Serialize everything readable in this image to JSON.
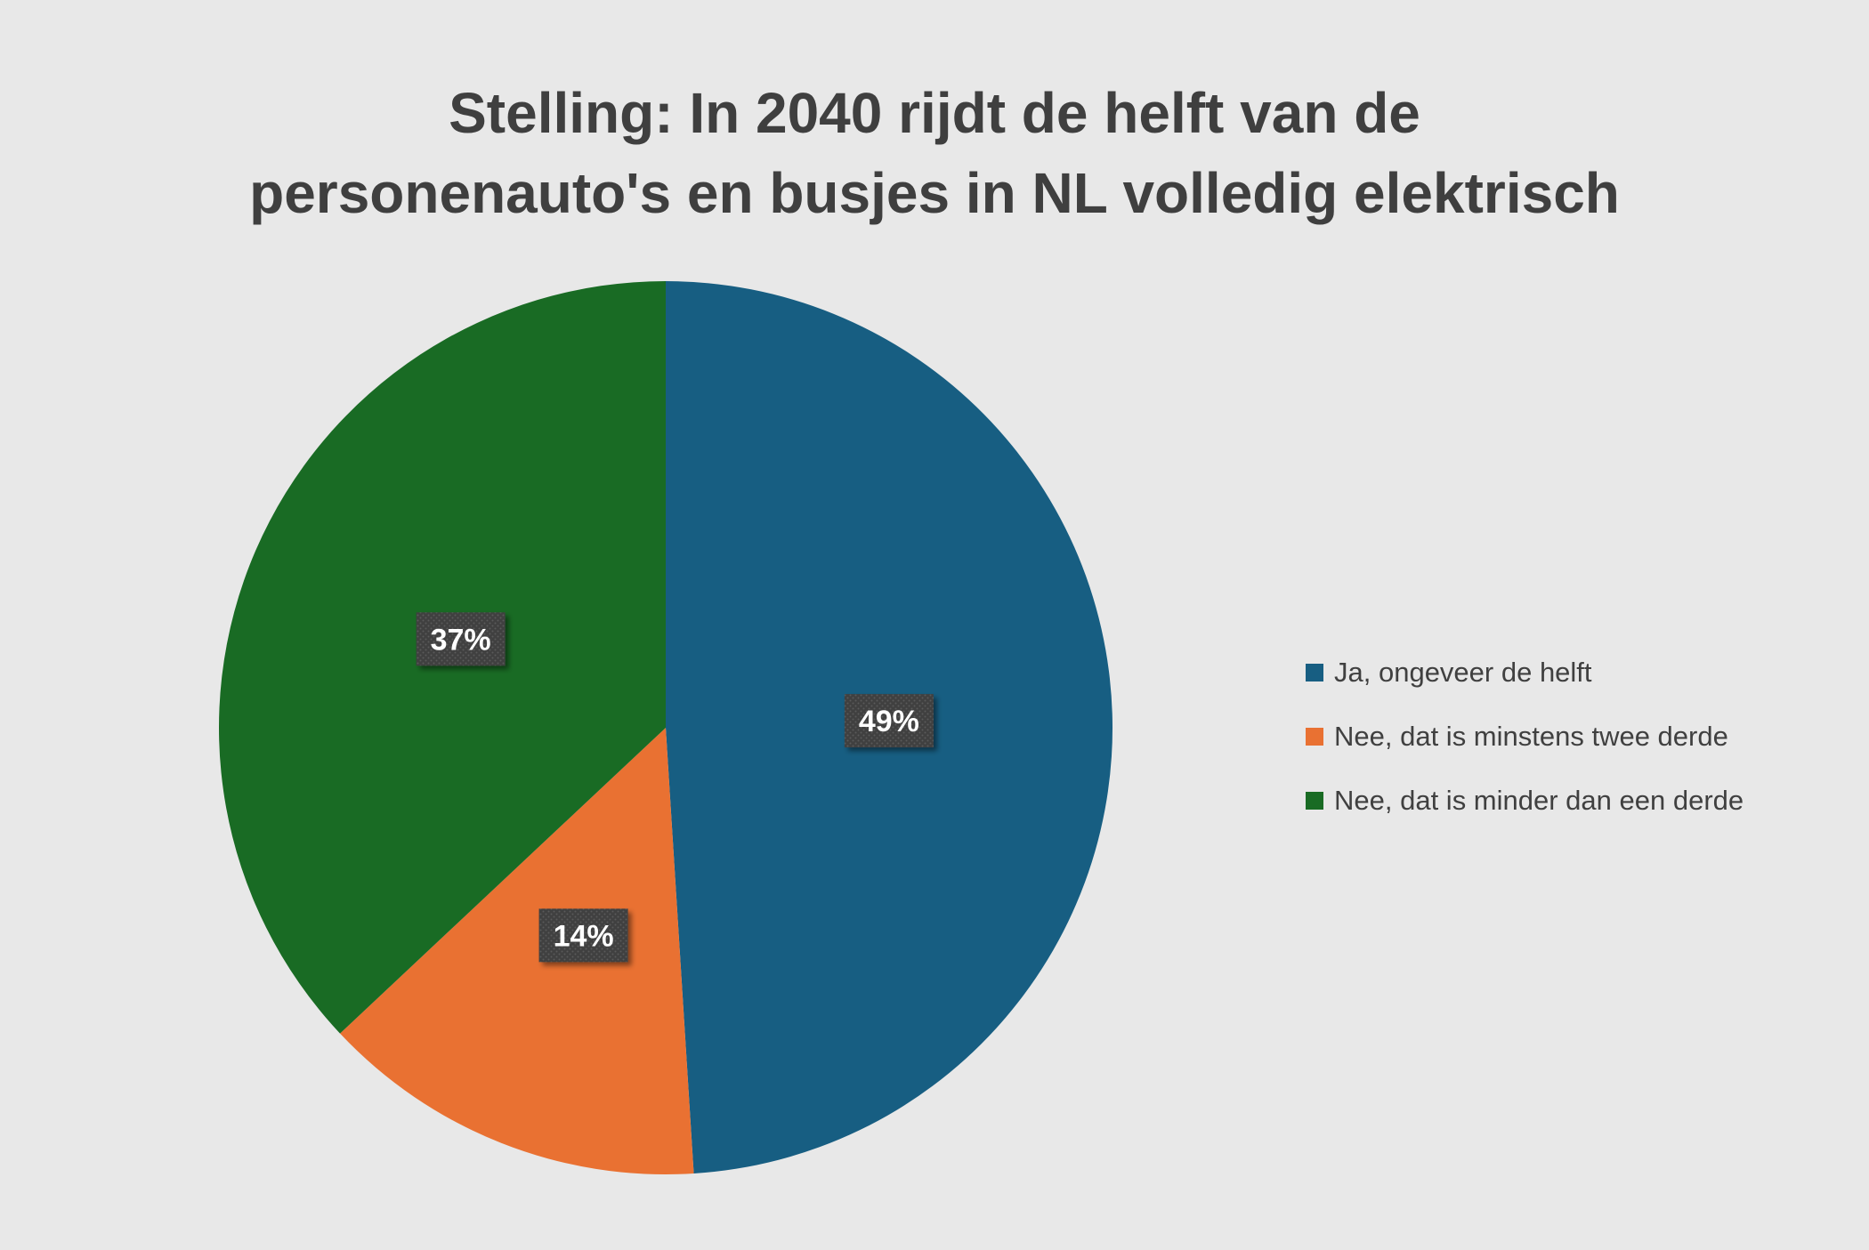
{
  "chart_data": {
    "type": "pie",
    "title_lines": [
      "Stelling: In 2040 rijdt de helft van de",
      "personenauto's en busjes in NL volledig elektrisch"
    ],
    "categories": [
      "Ja, ongeveer de helft",
      "Nee, dat is minstens twee derde",
      "Nee, dat is minder dan een derde"
    ],
    "values": [
      49,
      14,
      37
    ],
    "data_labels": [
      "49%",
      "14%",
      "37%"
    ],
    "colors": [
      "#175e82",
      "#e97132",
      "#196b24"
    ],
    "legend_position": "right"
  }
}
